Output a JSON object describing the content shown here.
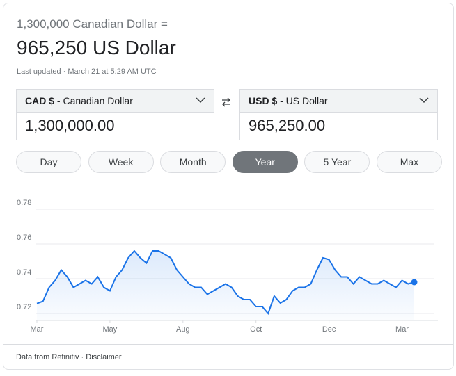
{
  "header": {
    "subtitle": "1,300,000 Canadian Dollar =",
    "title": "965,250 US Dollar",
    "updated": "Last updated · March 21 at 5:29 AM UTC"
  },
  "from": {
    "code": "CAD $",
    "name": " - Canadian Dollar",
    "amount": "1,300,000.00"
  },
  "to": {
    "code": "USD $",
    "name": " - US Dollar",
    "amount": "965,250.00"
  },
  "tabs": {
    "items": [
      "Day",
      "Week",
      "Month",
      "Year",
      "5 Year",
      "Max"
    ],
    "active": 3
  },
  "chart_data": {
    "type": "line",
    "categories": [
      "Mar",
      null,
      null,
      null,
      null,
      null,
      null,
      null,
      null,
      null,
      null,
      null,
      "May",
      null,
      null,
      null,
      null,
      null,
      null,
      null,
      null,
      null,
      null,
      null,
      "Aug",
      null,
      null,
      null,
      null,
      null,
      null,
      null,
      null,
      null,
      null,
      null,
      "Oct",
      null,
      null,
      null,
      null,
      null,
      null,
      null,
      null,
      null,
      null,
      null,
      "Dec",
      null,
      null,
      null,
      null,
      null,
      null,
      null,
      null,
      null,
      null,
      null,
      "Mar",
      null,
      null
    ],
    "series": [
      {
        "color": "#1a73e8",
        "values": [
          0.7257,
          0.727,
          0.735,
          0.739,
          0.745,
          0.741,
          0.735,
          0.737,
          0.739,
          0.737,
          0.741,
          0.735,
          0.733,
          0.741,
          0.745,
          0.752,
          0.756,
          0.752,
          0.749,
          0.756,
          0.756,
          0.754,
          0.752,
          0.745,
          0.741,
          0.737,
          0.735,
          0.735,
          0.731,
          0.733,
          0.735,
          0.737,
          0.735,
          0.73,
          0.728,
          0.728,
          0.724,
          0.724,
          0.72,
          0.73,
          0.726,
          0.728,
          0.733,
          0.735,
          0.735,
          0.737,
          0.745,
          0.752,
          0.751,
          0.745,
          0.741,
          0.741,
          0.737,
          0.741,
          0.739,
          0.737,
          0.737,
          0.739,
          0.737,
          0.735,
          0.739,
          0.737,
          0.738
        ]
      }
    ],
    "ylim": [
      0.716,
      0.784
    ],
    "yticks": [
      0.72,
      0.74,
      0.76,
      0.78
    ],
    "grid": true
  },
  "footer": "Data from Refinitiv · Disclaimer"
}
